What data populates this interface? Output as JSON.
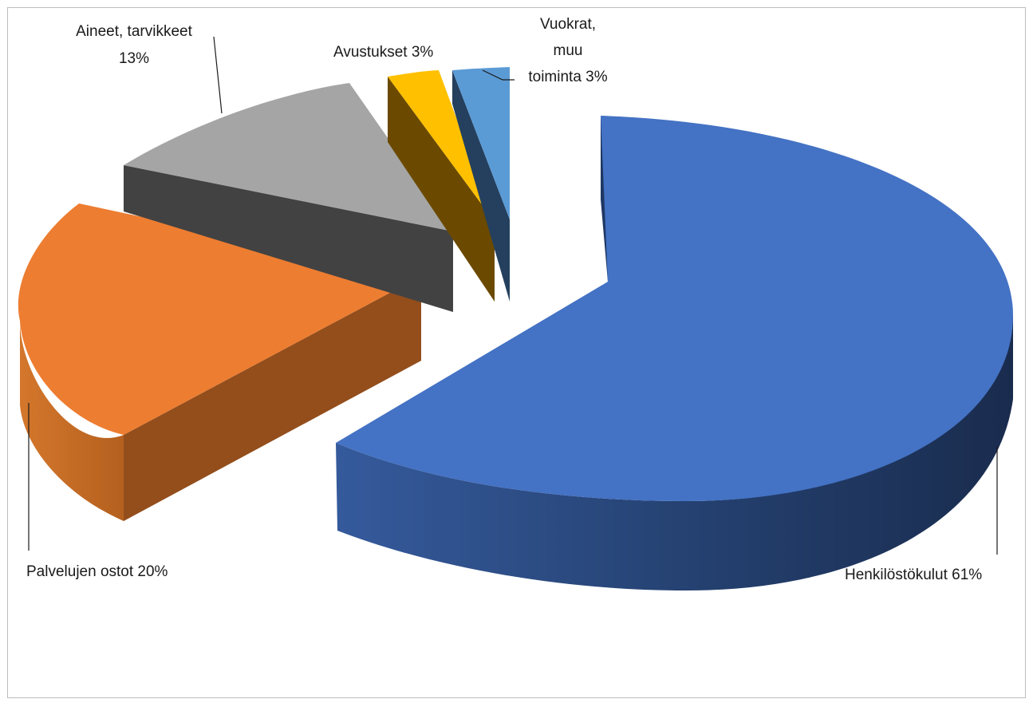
{
  "chart_data": {
    "type": "pie",
    "style": "3d-exploded",
    "title": "",
    "legend": "none",
    "slices": [
      {
        "key": "henkilosto",
        "label": "Henkilöstökulut 61%",
        "value": 61,
        "color": "#4472c4"
      },
      {
        "key": "palvelut",
        "label": "Palvelujen ostot  20%",
        "value": 20,
        "color": "#ed7d31"
      },
      {
        "key": "aineet",
        "label_lines": [
          "Aineet, tarvikkeet",
          "13%"
        ],
        "value": 13,
        "color": "#a5a5a5"
      },
      {
        "key": "avustukset",
        "label": "Avustukset 3%",
        "value": 3,
        "color": "#ffc000"
      },
      {
        "key": "vuokrat",
        "label_lines": [
          "Vuokrat,",
          "muu",
          "toiminta 3%"
        ],
        "value": 3,
        "color": "#5b9bd5"
      }
    ]
  }
}
